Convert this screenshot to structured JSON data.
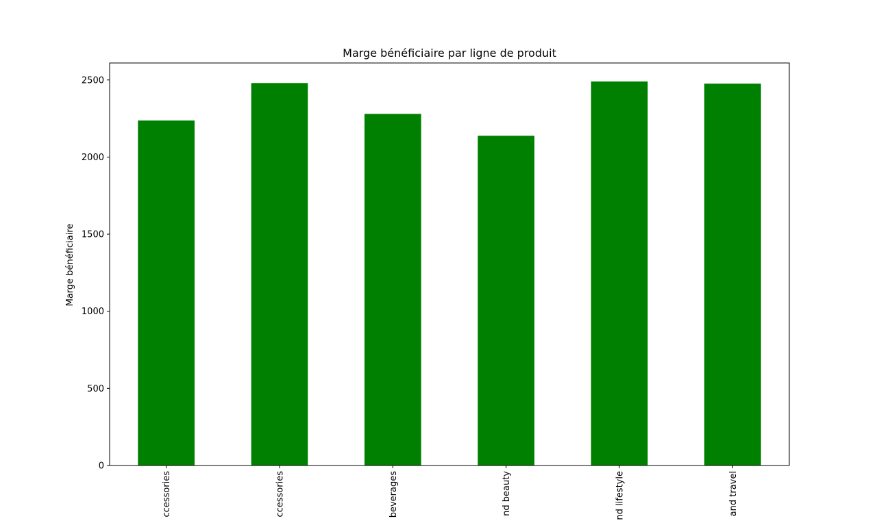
{
  "chart_data": {
    "type": "bar",
    "title": "Marge bénéficiaire par ligne de produit",
    "xlabel": "",
    "ylabel": "Marge bénéficiaire",
    "categories": [
      "ccessories",
      "ccessories",
      "beverages",
      "nd beauty",
      "nd lifestyle",
      "and travel"
    ],
    "values": [
      2237,
      2480,
      2280,
      2138,
      2490,
      2476
    ],
    "ylim": [
      0,
      2610
    ],
    "yticks": [
      0,
      500,
      1000,
      1500,
      2000,
      2500
    ],
    "bar_color": "#008000",
    "grid": false,
    "legend": "none"
  }
}
